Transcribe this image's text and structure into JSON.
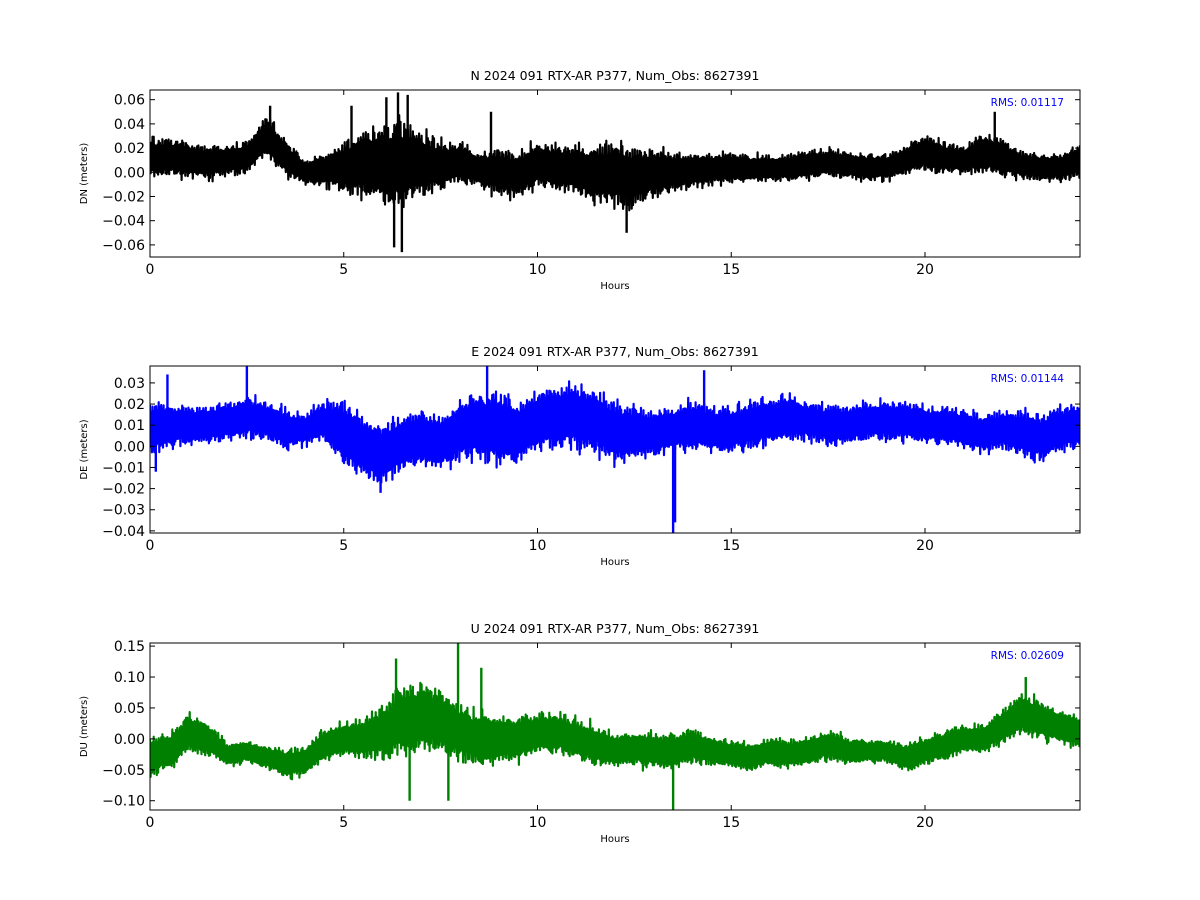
{
  "chart_data": [
    {
      "type": "line",
      "title": "N 2024 091 RTX-AR  P377, Num_Obs: 8627391",
      "xlabel": "Hours",
      "ylabel": "DN (meters)",
      "xlim": [
        0,
        24
      ],
      "ylim": [
        -0.07,
        0.068
      ],
      "xticks": [
        "0",
        "5",
        "10",
        "15",
        "20"
      ],
      "yticks": [
        "0.06",
        "0.04",
        "0.02",
        "0.00",
        "−0.02",
        "−0.04",
        "−0.06"
      ],
      "grid": false,
      "legend": "none",
      "color": "#000000",
      "annotation": "RMS:  0.01117",
      "annotation_color": "#0000ff",
      "series": [
        {
          "hours": [
            0,
            0.5,
            1,
            1.5,
            2,
            2.5,
            3,
            3.5,
            4,
            4.5,
            5,
            5.5,
            6,
            6.5,
            7,
            7.5,
            8,
            8.5,
            9,
            9.5,
            10,
            10.5,
            11,
            11.5,
            12,
            12.5,
            13,
            13.5,
            14,
            14.5,
            15,
            15.5,
            16,
            16.5,
            17,
            17.5,
            18,
            18.5,
            19,
            19.5,
            20,
            20.5,
            21,
            21.5,
            22,
            22.5,
            23,
            23.5,
            24
          ],
          "center": [
            0.012,
            0.012,
            0.01,
            0.008,
            0.01,
            0.012,
            0.03,
            0.012,
            0.0,
            0.002,
            0.004,
            0.008,
            0.006,
            0.006,
            0.008,
            0.005,
            0.008,
            0.002,
            0.0,
            -0.002,
            0.006,
            0.004,
            0.002,
            -0.002,
            -0.002,
            -0.004,
            0.0,
            0.0,
            0.002,
            0.003,
            0.004,
            0.003,
            0.003,
            0.004,
            0.006,
            0.008,
            0.006,
            0.004,
            0.004,
            0.01,
            0.016,
            0.012,
            0.01,
            0.016,
            0.012,
            0.006,
            0.004,
            0.004,
            0.01
          ],
          "halfwidth": [
            0.018,
            0.016,
            0.016,
            0.014,
            0.014,
            0.014,
            0.018,
            0.016,
            0.01,
            0.014,
            0.022,
            0.03,
            0.036,
            0.038,
            0.028,
            0.022,
            0.018,
            0.016,
            0.02,
            0.02,
            0.02,
            0.02,
            0.022,
            0.026,
            0.028,
            0.026,
            0.022,
            0.018,
            0.016,
            0.014,
            0.014,
            0.012,
            0.012,
            0.012,
            0.012,
            0.012,
            0.012,
            0.012,
            0.012,
            0.012,
            0.016,
            0.014,
            0.012,
            0.018,
            0.016,
            0.012,
            0.012,
            0.012,
            0.014
          ],
          "spikes": [
            [
              6.1,
              0.062
            ],
            [
              6.3,
              -0.062
            ],
            [
              6.4,
              0.066
            ],
            [
              6.5,
              -0.066
            ],
            [
              6.65,
              0.064
            ],
            [
              8.8,
              0.05
            ],
            [
              12.3,
              -0.05
            ],
            [
              21.8,
              0.05
            ],
            [
              5.2,
              0.055
            ],
            [
              3.1,
              0.055
            ]
          ]
        }
      ]
    },
    {
      "type": "line",
      "title": "E 2024 091 RTX-AR  P377, Num_Obs: 8627391",
      "xlabel": "Hours",
      "ylabel": "DE (meters)",
      "xlim": [
        0,
        24
      ],
      "ylim": [
        -0.041,
        0.038
      ],
      "xticks": [
        "0",
        "5",
        "10",
        "15",
        "20"
      ],
      "yticks": [
        "0.03",
        "0.02",
        "0.01",
        "0.00",
        "−0.01",
        "−0.02",
        "−0.03",
        "−0.04"
      ],
      "grid": false,
      "legend": "none",
      "color": "#0000ff",
      "annotation": "RMS:  0.01144",
      "annotation_color": "#0000ff",
      "series": [
        {
          "hours": [
            0,
            0.5,
            1,
            1.5,
            2,
            2.5,
            3,
            3.5,
            4,
            4.5,
            5,
            5.5,
            6,
            6.5,
            7,
            7.5,
            8,
            8.5,
            9,
            9.5,
            10,
            10.5,
            11,
            11.5,
            12,
            12.5,
            13,
            13.5,
            14,
            14.5,
            15,
            15.5,
            16,
            16.5,
            17,
            17.5,
            18,
            18.5,
            19,
            19.5,
            20,
            20.5,
            21,
            21.5,
            22,
            22.5,
            23,
            23.5,
            24
          ],
          "center": [
            0.008,
            0.01,
            0.01,
            0.01,
            0.012,
            0.014,
            0.012,
            0.008,
            0.008,
            0.012,
            0.006,
            0.0,
            -0.004,
            0.002,
            0.004,
            0.002,
            0.008,
            0.01,
            0.008,
            0.006,
            0.012,
            0.014,
            0.014,
            0.012,
            0.006,
            0.006,
            0.006,
            0.008,
            0.01,
            0.008,
            0.008,
            0.01,
            0.012,
            0.014,
            0.012,
            0.01,
            0.01,
            0.012,
            0.012,
            0.012,
            0.01,
            0.01,
            0.008,
            0.006,
            0.008,
            0.006,
            0.004,
            0.008,
            0.01
          ],
          "halfwidth": [
            0.014,
            0.012,
            0.01,
            0.01,
            0.01,
            0.01,
            0.01,
            0.01,
            0.008,
            0.01,
            0.016,
            0.016,
            0.016,
            0.014,
            0.014,
            0.014,
            0.016,
            0.018,
            0.018,
            0.016,
            0.016,
            0.016,
            0.016,
            0.016,
            0.016,
            0.014,
            0.012,
            0.012,
            0.012,
            0.012,
            0.012,
            0.012,
            0.012,
            0.012,
            0.01,
            0.01,
            0.01,
            0.01,
            0.01,
            0.01,
            0.01,
            0.01,
            0.01,
            0.01,
            0.01,
            0.012,
            0.012,
            0.012,
            0.012
          ],
          "spikes": [
            [
              0.45,
              0.034
            ],
            [
              2.5,
              0.038
            ],
            [
              8.7,
              0.038
            ],
            [
              13.5,
              -0.041
            ],
            [
              13.55,
              -0.036
            ],
            [
              14.3,
              0.036
            ],
            [
              5.95,
              -0.022
            ],
            [
              0.15,
              -0.012
            ]
          ]
        }
      ]
    },
    {
      "type": "line",
      "title": "U 2024 091 RTX-AR  P377, Num_Obs: 8627391",
      "xlabel": "Hours",
      "ylabel": "DU (meters)",
      "xlim": [
        0,
        24
      ],
      "ylim": [
        -0.115,
        0.155
      ],
      "xticks": [
        "0",
        "5",
        "10",
        "15",
        "20"
      ],
      "yticks": [
        "0.15",
        "0.10",
        "0.05",
        "0.00",
        "−0.05",
        "−0.10"
      ],
      "grid": false,
      "legend": "none",
      "color": "#008000",
      "annotation": "RMS:  0.02609",
      "annotation_color": "#0000ff",
      "series": [
        {
          "hours": [
            0,
            0.5,
            1,
            1.5,
            2,
            2.5,
            3,
            3.5,
            4,
            4.5,
            5,
            5.5,
            6,
            6.5,
            7,
            7.5,
            8,
            8.5,
            9,
            9.5,
            10,
            10.5,
            11,
            11.5,
            12,
            12.5,
            13,
            13.5,
            14,
            14.5,
            15,
            15.5,
            16,
            16.5,
            17,
            17.5,
            18,
            18.5,
            19,
            19.5,
            20,
            20.5,
            21,
            21.5,
            22,
            22.5,
            23,
            23.5,
            24
          ],
          "center": [
            -0.03,
            -0.02,
            0.01,
            0.0,
            -0.025,
            -0.02,
            -0.03,
            -0.04,
            -0.035,
            -0.01,
            0.0,
            0.0,
            0.01,
            0.03,
            0.035,
            0.03,
            0.01,
            0.0,
            0.0,
            0.0,
            0.01,
            0.01,
            0.0,
            -0.01,
            -0.02,
            -0.015,
            -0.02,
            -0.02,
            -0.01,
            -0.02,
            -0.025,
            -0.03,
            -0.02,
            -0.025,
            -0.02,
            -0.01,
            -0.02,
            -0.02,
            -0.02,
            -0.03,
            -0.02,
            -0.01,
            0.0,
            0.0,
            0.02,
            0.04,
            0.03,
            0.02,
            0.01
          ],
          "halfwidth": [
            0.035,
            0.03,
            0.035,
            0.03,
            0.02,
            0.02,
            0.02,
            0.025,
            0.025,
            0.03,
            0.03,
            0.035,
            0.045,
            0.06,
            0.06,
            0.055,
            0.05,
            0.045,
            0.045,
            0.04,
            0.035,
            0.035,
            0.035,
            0.035,
            0.03,
            0.03,
            0.03,
            0.03,
            0.03,
            0.025,
            0.025,
            0.025,
            0.025,
            0.025,
            0.025,
            0.025,
            0.025,
            0.02,
            0.02,
            0.025,
            0.025,
            0.025,
            0.025,
            0.025,
            0.03,
            0.035,
            0.035,
            0.03,
            0.03
          ],
          "spikes": [
            [
              6.35,
              0.13
            ],
            [
              7.95,
              0.155
            ],
            [
              6.7,
              -0.1
            ],
            [
              7.7,
              -0.1
            ],
            [
              13.5,
              -0.115
            ],
            [
              8.55,
              0.115
            ],
            [
              22.6,
              0.1
            ]
          ]
        }
      ]
    }
  ]
}
